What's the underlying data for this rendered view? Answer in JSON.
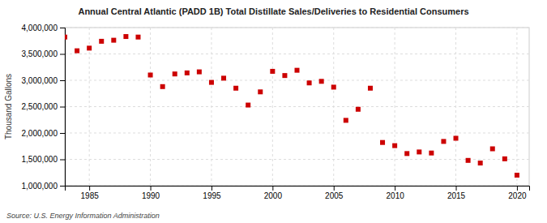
{
  "chart_data": {
    "type": "scatter",
    "title": "Annual Central Atlantic (PADD 1B) Total Distillate Sales/Deliveries to Residential Consumers",
    "ylabel": "Thousand Gallons",
    "source": "Source: U.S. Energy Information Administration",
    "color": "#cc0000",
    "marker": "square",
    "grid": true,
    "xlim": [
      1983,
      2021
    ],
    "ylim": [
      1000000,
      4000000
    ],
    "xticks": [
      1985,
      1990,
      1995,
      2000,
      2005,
      2010,
      2015,
      2020
    ],
    "yticks": [
      {
        "value": 1000000,
        "label": "1,000,000"
      },
      {
        "value": 1500000,
        "label": "1,500,000"
      },
      {
        "value": 2000000,
        "label": "2,000,000"
      },
      {
        "value": 2500000,
        "label": "2,500,000"
      },
      {
        "value": 3000000,
        "label": "3,000,000"
      },
      {
        "value": 3500000,
        "label": "3,500,000"
      },
      {
        "value": 4000000,
        "label": "4,000,000"
      }
    ],
    "x": [
      1983,
      1984,
      1985,
      1986,
      1987,
      1988,
      1989,
      1990,
      1991,
      1992,
      1993,
      1994,
      1995,
      1996,
      1997,
      1998,
      1999,
      2000,
      2001,
      2002,
      2003,
      2004,
      2005,
      2006,
      2007,
      2008,
      2009,
      2010,
      2011,
      2012,
      2013,
      2014,
      2015,
      2016,
      2017,
      2018,
      2019,
      2020
    ],
    "values": [
      3820000,
      3560000,
      3610000,
      3740000,
      3760000,
      3830000,
      3820000,
      3100000,
      2880000,
      3120000,
      3140000,
      3160000,
      2960000,
      3040000,
      2850000,
      2530000,
      2780000,
      3170000,
      3090000,
      3190000,
      2950000,
      2980000,
      2870000,
      2240000,
      2450000,
      2850000,
      1820000,
      1760000,
      1610000,
      1640000,
      1620000,
      1840000,
      1900000,
      1480000,
      1430000,
      1700000,
      1510000,
      1200000
    ]
  }
}
